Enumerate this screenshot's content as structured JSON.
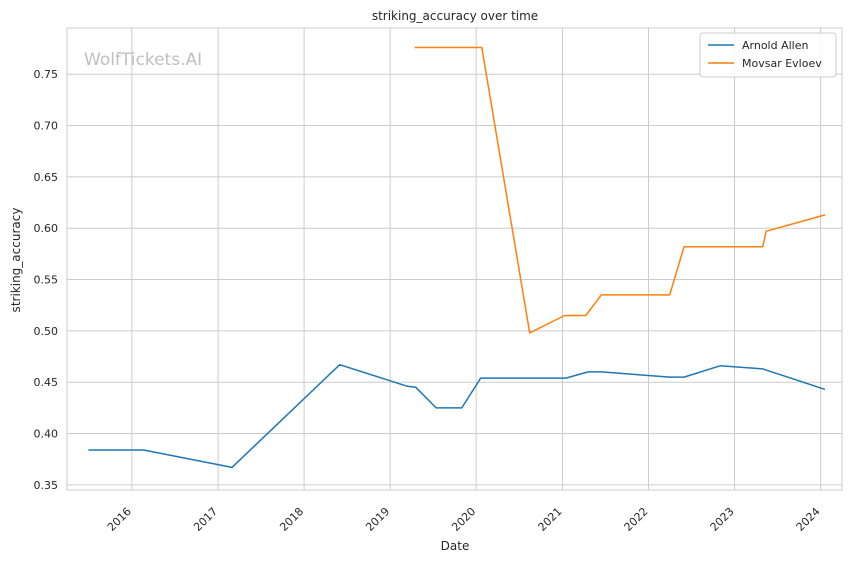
{
  "watermark": "WolfTickets.AI",
  "chart_data": {
    "type": "line",
    "title": "striking_accuracy over time",
    "xlabel": "Date",
    "ylabel": "striking_accuracy",
    "x_ticks": [
      "2016",
      "2017",
      "2018",
      "2019",
      "2020",
      "2021",
      "2022",
      "2023",
      "2024"
    ],
    "y_ticks": [
      "0.35",
      "0.40",
      "0.45",
      "0.50",
      "0.55",
      "0.60",
      "0.65",
      "0.70",
      "0.75"
    ],
    "xlim": [
      "2015-04-01",
      "2024-04-01"
    ],
    "ylim": [
      0.345,
      0.795
    ],
    "grid": true,
    "legend_position": "top-right",
    "series": [
      {
        "name": "Arnold Allen",
        "color": "#1f77b4",
        "points": [
          [
            "2015-07-01",
            0.384
          ],
          [
            "2016-02-20",
            0.384
          ],
          [
            "2017-03-01",
            0.367
          ],
          [
            "2018-06-01",
            0.467
          ],
          [
            "2019-03-15",
            0.446
          ],
          [
            "2019-04-20",
            0.445
          ],
          [
            "2019-07-15",
            0.425
          ],
          [
            "2019-11-01",
            0.425
          ],
          [
            "2020-01-20",
            0.454
          ],
          [
            "2020-04-01",
            0.454
          ],
          [
            "2020-10-01",
            0.454
          ],
          [
            "2021-01-15",
            0.454
          ],
          [
            "2021-04-20",
            0.46
          ],
          [
            "2021-06-15",
            0.46
          ],
          [
            "2022-04-01",
            0.455
          ],
          [
            "2022-06-01",
            0.455
          ],
          [
            "2022-11-01",
            0.466
          ],
          [
            "2023-05-01",
            0.463
          ],
          [
            "2024-01-20",
            0.443
          ]
        ]
      },
      {
        "name": "Movsar Evloev",
        "color": "#ff7f0e",
        "points": [
          [
            "2019-04-15",
            0.776
          ],
          [
            "2020-01-25",
            0.776
          ],
          [
            "2020-08-15",
            0.498
          ],
          [
            "2021-01-10",
            0.515
          ],
          [
            "2021-04-10",
            0.515
          ],
          [
            "2021-06-15",
            0.535
          ],
          [
            "2022-04-01",
            0.535
          ],
          [
            "2022-06-01",
            0.582
          ],
          [
            "2023-05-01",
            0.582
          ],
          [
            "2023-05-15",
            0.597
          ],
          [
            "2024-01-20",
            0.613
          ]
        ]
      }
    ]
  }
}
